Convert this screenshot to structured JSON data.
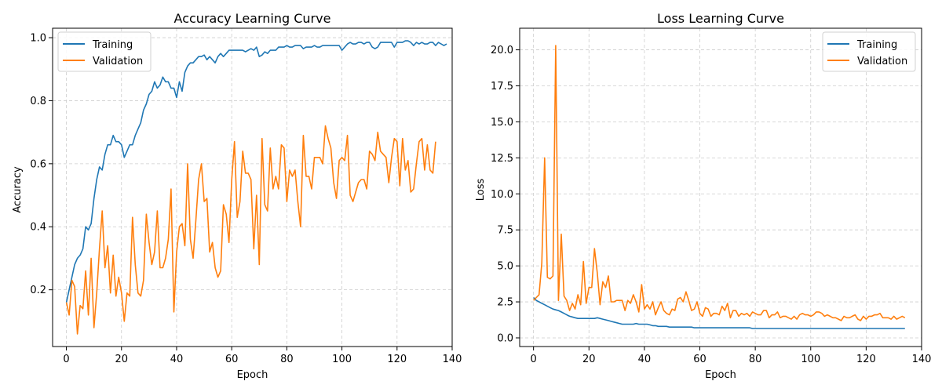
{
  "figure": {
    "background": "#ffffff"
  },
  "colors": {
    "training": "#1f77b4",
    "validation": "#ff7f0e",
    "grid": "#cccccc",
    "axis": "#000000"
  },
  "chart_data": [
    {
      "type": "line",
      "title": "Accuracy Learning Curve",
      "xlabel": "Epoch",
      "ylabel": "Accuracy",
      "xlim": [
        -5,
        140
      ],
      "ylim": [
        0.02,
        1.03
      ],
      "xticks": [
        0,
        20,
        40,
        60,
        80,
        100,
        120,
        140
      ],
      "xtick_labels": [
        "0",
        "20",
        "40",
        "60",
        "80",
        "100",
        "120",
        "140"
      ],
      "yticks": [
        0.2,
        0.4,
        0.6,
        0.8,
        1.0
      ],
      "ytick_labels": [
        "0.2",
        "0.4",
        "0.6",
        "0.8",
        "1.0"
      ],
      "grid": true,
      "legend_position": "top-left",
      "series": [
        {
          "name": "Training",
          "color": "#1f77b4",
          "x_start": 0,
          "values": [
            0.16,
            0.2,
            0.24,
            0.28,
            0.3,
            0.31,
            0.33,
            0.4,
            0.39,
            0.41,
            0.49,
            0.55,
            0.59,
            0.58,
            0.63,
            0.66,
            0.66,
            0.69,
            0.67,
            0.67,
            0.66,
            0.62,
            0.64,
            0.66,
            0.66,
            0.69,
            0.71,
            0.73,
            0.77,
            0.79,
            0.82,
            0.83,
            0.86,
            0.84,
            0.85,
            0.875,
            0.86,
            0.86,
            0.84,
            0.84,
            0.81,
            0.86,
            0.83,
            0.89,
            0.91,
            0.92,
            0.92,
            0.93,
            0.94,
            0.94,
            0.945,
            0.93,
            0.94,
            0.93,
            0.92,
            0.94,
            0.95,
            0.94,
            0.95,
            0.96,
            0.96,
            0.96,
            0.96,
            0.96,
            0.96,
            0.955,
            0.96,
            0.965,
            0.96,
            0.97,
            0.94,
            0.945,
            0.955,
            0.95,
            0.96,
            0.96,
            0.96,
            0.97,
            0.97,
            0.97,
            0.975,
            0.97,
            0.97,
            0.975,
            0.975,
            0.975,
            0.965,
            0.97,
            0.97,
            0.97,
            0.975,
            0.97,
            0.97,
            0.975,
            0.975,
            0.975,
            0.975,
            0.975,
            0.975,
            0.975,
            0.96,
            0.97,
            0.98,
            0.985,
            0.98,
            0.98,
            0.985,
            0.985,
            0.98,
            0.985,
            0.985,
            0.97,
            0.965,
            0.97,
            0.985,
            0.985,
            0.985,
            0.985,
            0.985,
            0.97,
            0.985,
            0.985,
            0.985,
            0.99,
            0.99,
            0.985,
            0.975,
            0.985,
            0.98,
            0.985,
            0.98,
            0.98,
            0.985,
            0.985,
            0.975,
            0.985,
            0.98,
            0.975,
            0.98
          ]
        },
        {
          "name": "Validation",
          "color": "#ff7f0e",
          "x_start": 0,
          "values": [
            0.16,
            0.12,
            0.23,
            0.21,
            0.06,
            0.15,
            0.14,
            0.26,
            0.12,
            0.3,
            0.08,
            0.19,
            0.33,
            0.45,
            0.27,
            0.34,
            0.19,
            0.31,
            0.18,
            0.24,
            0.19,
            0.1,
            0.19,
            0.18,
            0.43,
            0.28,
            0.19,
            0.18,
            0.23,
            0.44,
            0.35,
            0.28,
            0.32,
            0.45,
            0.27,
            0.27,
            0.3,
            0.36,
            0.52,
            0.13,
            0.32,
            0.4,
            0.41,
            0.34,
            0.6,
            0.36,
            0.3,
            0.42,
            0.55,
            0.6,
            0.48,
            0.49,
            0.32,
            0.35,
            0.27,
            0.24,
            0.26,
            0.47,
            0.44,
            0.35,
            0.55,
            0.67,
            0.43,
            0.48,
            0.64,
            0.57,
            0.57,
            0.55,
            0.33,
            0.5,
            0.28,
            0.68,
            0.47,
            0.45,
            0.65,
            0.52,
            0.56,
            0.52,
            0.66,
            0.65,
            0.48,
            0.58,
            0.56,
            0.58,
            0.48,
            0.4,
            0.69,
            0.56,
            0.56,
            0.52,
            0.62,
            0.62,
            0.62,
            0.6,
            0.72,
            0.68,
            0.65,
            0.54,
            0.49,
            0.61,
            0.62,
            0.61,
            0.69,
            0.5,
            0.48,
            0.51,
            0.54,
            0.55,
            0.55,
            0.52,
            0.64,
            0.63,
            0.61,
            0.7,
            0.64,
            0.63,
            0.62,
            0.54,
            0.62,
            0.68,
            0.67,
            0.53,
            0.68,
            0.58,
            0.61,
            0.51,
            0.52,
            0.6,
            0.67,
            0.68,
            0.58,
            0.66,
            0.58,
            0.57,
            0.67
          ]
        }
      ]
    },
    {
      "type": "line",
      "title": "Loss Learning Curve",
      "xlabel": "Epoch",
      "ylabel": "Loss",
      "xlim": [
        -5,
        140
      ],
      "ylim": [
        -0.6,
        21.5
      ],
      "xticks": [
        0,
        20,
        40,
        60,
        80,
        100,
        120,
        140
      ],
      "xtick_labels": [
        "0",
        "20",
        "40",
        "60",
        "80",
        "100",
        "120",
        "140"
      ],
      "yticks": [
        0,
        2.5,
        5,
        7.5,
        10,
        12.5,
        15,
        17.5,
        20
      ],
      "ytick_labels": [
        "0.0",
        "2.5",
        "5.0",
        "7.5",
        "10.0",
        "12.5",
        "15.0",
        "17.5",
        "20.0"
      ],
      "grid": true,
      "legend_position": "top-right",
      "series": [
        {
          "name": "Training",
          "color": "#1f77b4",
          "x_start": 0,
          "values": [
            2.8,
            2.6,
            2.5,
            2.4,
            2.3,
            2.2,
            2.1,
            2.0,
            1.95,
            1.9,
            1.8,
            1.7,
            1.6,
            1.5,
            1.45,
            1.4,
            1.35,
            1.35,
            1.35,
            1.35,
            1.35,
            1.35,
            1.35,
            1.4,
            1.35,
            1.3,
            1.25,
            1.2,
            1.15,
            1.1,
            1.05,
            1.0,
            0.95,
            0.95,
            0.95,
            0.95,
            0.95,
            1.0,
            0.95,
            0.95,
            0.95,
            0.95,
            0.9,
            0.85,
            0.85,
            0.8,
            0.8,
            0.8,
            0.8,
            0.75,
            0.75,
            0.75,
            0.75,
            0.75,
            0.75,
            0.75,
            0.75,
            0.75,
            0.7,
            0.7,
            0.7,
            0.7,
            0.7,
            0.7,
            0.7,
            0.7,
            0.7,
            0.7,
            0.7,
            0.7,
            0.7,
            0.7,
            0.7,
            0.7,
            0.7,
            0.7,
            0.7,
            0.7,
            0.7,
            0.65,
            0.65,
            0.65,
            0.65,
            0.65,
            0.65,
            0.65,
            0.65,
            0.65,
            0.65,
            0.65,
            0.65,
            0.65,
            0.65,
            0.65,
            0.65,
            0.65,
            0.65,
            0.65,
            0.65,
            0.65,
            0.65,
            0.65,
            0.65,
            0.65,
            0.65,
            0.65,
            0.65,
            0.65,
            0.65,
            0.65,
            0.65,
            0.65,
            0.65,
            0.65,
            0.65,
            0.65,
            0.65,
            0.65,
            0.65,
            0.65,
            0.65,
            0.65,
            0.65,
            0.65,
            0.65,
            0.65,
            0.65,
            0.65,
            0.65,
            0.65,
            0.65,
            0.65,
            0.65,
            0.65,
            0.65
          ]
        },
        {
          "name": "Validation",
          "color": "#ff7f0e",
          "x_start": 0,
          "values": [
            2.6,
            2.8,
            3.0,
            5.2,
            12.5,
            4.2,
            4.1,
            4.3,
            20.3,
            2.6,
            7.2,
            2.9,
            2.6,
            1.9,
            2.4,
            2.0,
            3.0,
            2.3,
            5.3,
            2.4,
            3.5,
            3.5,
            6.2,
            4.5,
            2.3,
            3.9,
            3.5,
            4.3,
            2.5,
            2.5,
            2.6,
            2.6,
            2.6,
            1.9,
            2.6,
            2.4,
            3.0,
            2.5,
            1.8,
            3.7,
            2.0,
            2.3,
            2.0,
            2.5,
            1.6,
            2.1,
            2.5,
            1.9,
            1.7,
            1.6,
            2.0,
            1.9,
            2.7,
            2.8,
            2.5,
            3.2,
            2.6,
            1.9,
            2.0,
            2.5,
            1.7,
            1.5,
            2.1,
            2.0,
            1.5,
            1.7,
            1.7,
            1.6,
            2.2,
            1.9,
            2.4,
            1.4,
            1.9,
            1.9,
            1.5,
            1.7,
            1.6,
            1.7,
            1.5,
            1.8,
            1.7,
            1.6,
            1.6,
            1.9,
            1.9,
            1.4,
            1.6,
            1.6,
            1.8,
            1.4,
            1.5,
            1.5,
            1.4,
            1.3,
            1.5,
            1.3,
            1.6,
            1.7,
            1.6,
            1.6,
            1.5,
            1.6,
            1.8,
            1.8,
            1.7,
            1.5,
            1.6,
            1.5,
            1.4,
            1.4,
            1.3,
            1.2,
            1.5,
            1.4,
            1.4,
            1.5,
            1.6,
            1.3,
            1.2,
            1.5,
            1.3,
            1.5,
            1.5,
            1.6,
            1.6,
            1.7,
            1.4,
            1.4,
            1.4,
            1.3,
            1.5,
            1.3,
            1.4,
            1.5,
            1.4
          ]
        }
      ]
    }
  ]
}
